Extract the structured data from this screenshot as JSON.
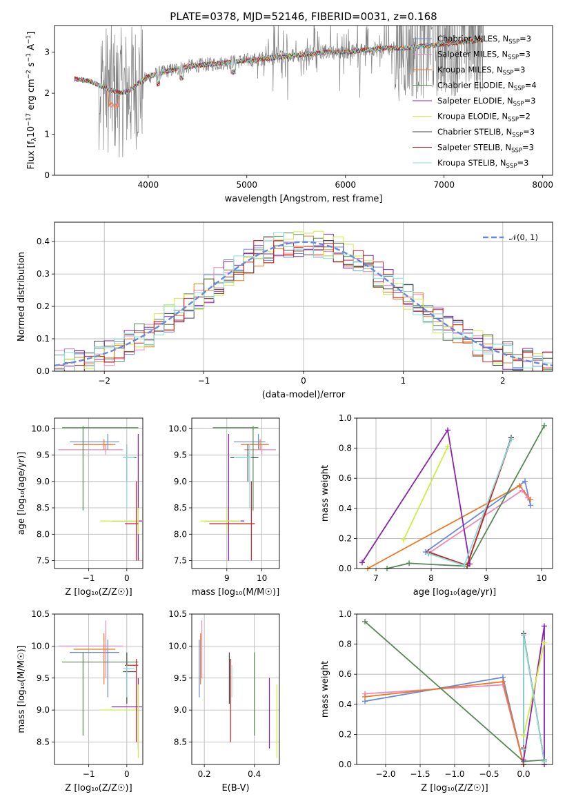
{
  "figure": {
    "title": "PLATE=0378, MJD=52146, FIBERID=0031, z=0.168"
  },
  "models": [
    {
      "label": "Chabrier MILES, N",
      "nssp": "=3",
      "color": "#6688dd"
    },
    {
      "label": "Salpeter MILES, N",
      "nssp": "=3",
      "color": "#ee88bb"
    },
    {
      "label": "Kroupa MILES, N",
      "nssp": "=3",
      "color": "#ee7722"
    },
    {
      "label": "Chabrier ELODIE, N",
      "nssp": "=4",
      "color": "#558855"
    },
    {
      "label": "Salpeter ELODIE, N",
      "nssp": "=3",
      "color": "#8822aa"
    },
    {
      "label": "Kroupa ELODIE, N",
      "nssp": "=2",
      "color": "#ccee44"
    },
    {
      "label": "Chabrier STELIB, N",
      "nssp": "=3",
      "color": "#444444"
    },
    {
      "label": "Salpeter STELIB, N",
      "nssp": "=3",
      "color": "#cc2222"
    },
    {
      "label": "Kroupa STELIB, N",
      "nssp": "=3",
      "color": "#88dddd"
    }
  ],
  "chart_data": [
    {
      "type": "line",
      "panel": "spectrum",
      "xlabel": "wavelength [Angstrom, rest frame]",
      "ylabel": "Flux [f",
      "xlim": [
        3050,
        8100
      ],
      "ylim": [
        0,
        3.65
      ],
      "xticks": [
        "4000",
        "5000",
        "6000",
        "7000",
        "8000"
      ],
      "xtick_values": [
        4000,
        5000,
        6000,
        7000,
        8000
      ],
      "yticks": [
        "0",
        "1",
        "2",
        "3"
      ],
      "ytick_values": [
        0,
        1,
        2,
        3
      ],
      "data_color": "#808080",
      "data_range": [
        3250,
        7400
      ],
      "model_continuum": {
        "x": [
          3250,
          3400,
          3500,
          3600,
          3700,
          3800,
          3900,
          4000,
          4200,
          4400,
          4600,
          4800,
          5000,
          5200,
          5400,
          5600,
          5800,
          6000,
          6200,
          6400,
          6600,
          6800,
          7000,
          7200,
          7400
        ],
        "y": [
          2.35,
          2.3,
          2.2,
          2.1,
          2.0,
          2.05,
          2.25,
          2.4,
          2.55,
          2.65,
          2.7,
          2.75,
          2.8,
          2.85,
          2.9,
          2.95,
          3.0,
          3.0,
          3.05,
          3.1,
          3.1,
          3.15,
          3.2,
          3.25,
          3.3
        ]
      }
    },
    {
      "type": "histogram",
      "panel": "residuals",
      "xlabel": "(data-model)/error",
      "ylabel": "Normed distribution",
      "xlim": [
        -2.5,
        2.5
      ],
      "ylim": [
        0,
        0.46
      ],
      "xticks": [
        "−2",
        "−1",
        "0",
        "1",
        "2"
      ],
      "xtick_values": [
        -2,
        -1,
        0,
        1,
        2
      ],
      "yticks": [
        "0.0",
        "0.1",
        "0.2",
        "0.3",
        "0.4"
      ],
      "ytick_values": [
        0,
        0.1,
        0.2,
        0.3,
        0.4
      ],
      "bin_width": 0.1,
      "reference": {
        "name": "𝒩(0, 1)",
        "color": "#6688dd",
        "mean": 0,
        "sigma": 1
      }
    },
    {
      "type": "errorbar",
      "panel": "age-vs-Z",
      "xlabel": "Z [log₁₀(Z/Z☉)]",
      "ylabel": "age [log₁₀(age/yr)]",
      "xlim": [
        -1.9,
        0.42
      ],
      "ylim": [
        7.35,
        10.2
      ],
      "xticks": [
        "−1",
        "0"
      ],
      "xtick_values": [
        -1,
        0
      ],
      "yticks": [
        "7.5",
        "8.0",
        "8.5",
        "9.0",
        "9.5",
        "10.0"
      ],
      "ytick_values": [
        7.5,
        8.0,
        8.5,
        9.0,
        9.5,
        10.0
      ]
    },
    {
      "type": "errorbar",
      "panel": "age-vs-mass",
      "xlabel": "mass [log₁₀(M/M☉)]",
      "xlim": [
        8.0,
        10.5
      ],
      "ylim": [
        7.35,
        10.2
      ],
      "xticks": [
        "9",
        "10"
      ],
      "xtick_values": [
        9,
        10
      ],
      "yticks": [
        "7.5",
        "8.0",
        "8.5",
        "9.0",
        "9.5",
        "10.0"
      ],
      "ytick_values": [
        7.5,
        8.0,
        8.5,
        9.0,
        9.5,
        10.0
      ]
    },
    {
      "type": "line",
      "panel": "weight-vs-age",
      "xlabel": "age [log₁₀(age/yr)]",
      "ylabel": "mass weight",
      "xlim": [
        6.65,
        10.2
      ],
      "ylim": [
        0,
        1.0
      ],
      "xticks": [
        "7",
        "8",
        "9",
        "10"
      ],
      "xtick_values": [
        7,
        8,
        9,
        10
      ],
      "yticks": [
        "0.0",
        "0.2",
        "0.4",
        "0.6",
        "0.8",
        "1.0"
      ],
      "ytick_values": [
        0,
        0.2,
        0.4,
        0.6,
        0.8,
        1.0
      ],
      "series": [
        {
          "model": 0,
          "x": [
            7.9,
            9.7,
            9.8
          ],
          "y": [
            0.11,
            0.58,
            0.42
          ]
        },
        {
          "model": 1,
          "x": [
            7.95,
            9.65,
            9.75
          ],
          "y": [
            0.1,
            0.52,
            0.47
          ]
        },
        {
          "model": 2,
          "x": [
            6.85,
            9.6,
            9.8
          ],
          "y": [
            0.0,
            0.55,
            0.46
          ]
        },
        {
          "model": 3,
          "x": [
            7.2,
            7.6,
            8.65,
            10.05
          ],
          "y": [
            0.0,
            0.035,
            0.015,
            0.95
          ]
        },
        {
          "model": 4,
          "x": [
            6.75,
            8.3,
            8.7
          ],
          "y": [
            0.04,
            0.92,
            0.03
          ]
        },
        {
          "model": 5,
          "x": [
            7.5,
            8.3
          ],
          "y": [
            0.19,
            0.81
          ]
        },
        {
          "model": 6,
          "x": [
            7.95,
            8.65,
            9.45
          ],
          "y": [
            0.1,
            0.02,
            0.87
          ]
        },
        {
          "model": 7,
          "x": [
            7.95,
            8.65,
            9.45
          ],
          "y": [
            0.11,
            0.02,
            0.86
          ]
        },
        {
          "model": 8,
          "x": [
            7.95,
            8.6,
            9.45
          ],
          "y": [
            0.1,
            0.02,
            0.86
          ]
        }
      ]
    },
    {
      "type": "errorbar",
      "panel": "mass-vs-Z",
      "xlabel": "Z [log₁₀(Z/Z☉)]",
      "ylabel": "mass [log₁₀(M/M☉)]",
      "xlim": [
        -1.9,
        0.42
      ],
      "ylim": [
        8.15,
        10.5
      ],
      "xticks": [
        "−1",
        "0"
      ],
      "xtick_values": [
        -1,
        0
      ],
      "yticks": [
        "8.5",
        "9.0",
        "9.5",
        "10.0",
        "10.5"
      ],
      "ytick_values": [
        8.5,
        9.0,
        9.5,
        10.0,
        10.5
      ]
    },
    {
      "type": "errorbar",
      "panel": "mass-vs-EBV",
      "xlabel": "E(B-V)",
      "xlim": [
        0.15,
        0.5
      ],
      "ylim": [
        8.15,
        10.5
      ],
      "xticks": [
        "0.2",
        "0.4"
      ],
      "xtick_values": [
        0.2,
        0.4
      ],
      "yticks": [
        "8.5",
        "9.0",
        "9.5",
        "10.0",
        "10.5"
      ],
      "ytick_values": [
        8.5,
        9.0,
        9.5,
        10.0,
        10.5
      ]
    },
    {
      "type": "line",
      "panel": "weight-vs-Z",
      "xlabel": "Z [log₁₀(Z/Z☉)]",
      "ylabel": "mass weight",
      "xlim": [
        -2.42,
        0.42
      ],
      "ylim": [
        0,
        1.0
      ],
      "xticks": [
        "−2.0",
        "−1.5",
        "−1.0",
        "−0.5",
        "0.0"
      ],
      "xtick_values": [
        -2,
        -1.5,
        -1,
        -0.5,
        0
      ],
      "yticks": [
        "0.0",
        "0.2",
        "0.4",
        "0.6",
        "0.8",
        "1.0"
      ],
      "ytick_values": [
        0,
        0.2,
        0.4,
        0.6,
        0.8,
        1.0
      ],
      "series": [
        {
          "model": 0,
          "x": [
            -2.3,
            -0.3,
            0.0
          ],
          "y": [
            0.42,
            0.58,
            0.0
          ]
        },
        {
          "model": 1,
          "x": [
            -2.3,
            -0.3,
            0.0
          ],
          "y": [
            0.47,
            0.53,
            0.0
          ]
        },
        {
          "model": 2,
          "x": [
            -2.3,
            -0.3,
            0.0
          ],
          "y": [
            0.45,
            0.55,
            0.0
          ]
        },
        {
          "model": 3,
          "x": [
            -2.3,
            0.0,
            0.3
          ],
          "y": [
            0.95,
            0.02,
            0.03
          ]
        },
        {
          "model": 4,
          "x": [
            0.0,
            0.3,
            0.3
          ],
          "y": [
            0.03,
            0.92,
            0.0
          ]
        },
        {
          "model": 5,
          "x": [
            0.0,
            0.3
          ],
          "y": [
            0.19,
            0.81
          ]
        },
        {
          "model": 6,
          "x": [
            0.0,
            0.0,
            0.3
          ],
          "y": [
            0.1,
            0.87,
            0.02
          ]
        },
        {
          "model": 7,
          "x": [
            0.0,
            0.0,
            0.3
          ],
          "y": [
            0.11,
            0.86,
            0.02
          ]
        },
        {
          "model": 8,
          "x": [
            0.0,
            0.0,
            0.3
          ],
          "y": [
            0.1,
            0.86,
            0.02
          ]
        }
      ]
    }
  ]
}
